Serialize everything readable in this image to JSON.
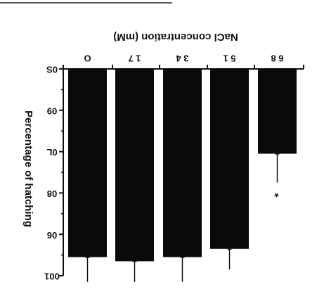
{
  "chart_data": {
    "type": "bar",
    "orientation": "vertical-rotated-180",
    "title": "NaCl concentration (mM)",
    "xlabel": "NaCl concentration (mM)",
    "ylabel": "Percentage of hatching",
    "categories": [
      "0",
      "17",
      "34",
      "51",
      "68"
    ],
    "category_labels_printed": [
      "O",
      "1 7",
      "3 4",
      "5 1",
      "6 8"
    ],
    "values": [
      95.5,
      96.5,
      95.5,
      93.5,
      70.5
    ],
    "error": [
      6,
      5,
      6,
      5,
      7
    ],
    "significance": [
      "",
      "",
      "",
      "",
      "*"
    ],
    "ylim": [
      50,
      100
    ],
    "yticks": [
      50,
      60,
      70,
      80,
      90,
      100
    ],
    "ytick_labels_printed": [
      "0S",
      "09",
      "0L",
      "08",
      "06",
      "001"
    ],
    "bar_color": "#0a0a0a",
    "grid": false,
    "legend": "none"
  }
}
